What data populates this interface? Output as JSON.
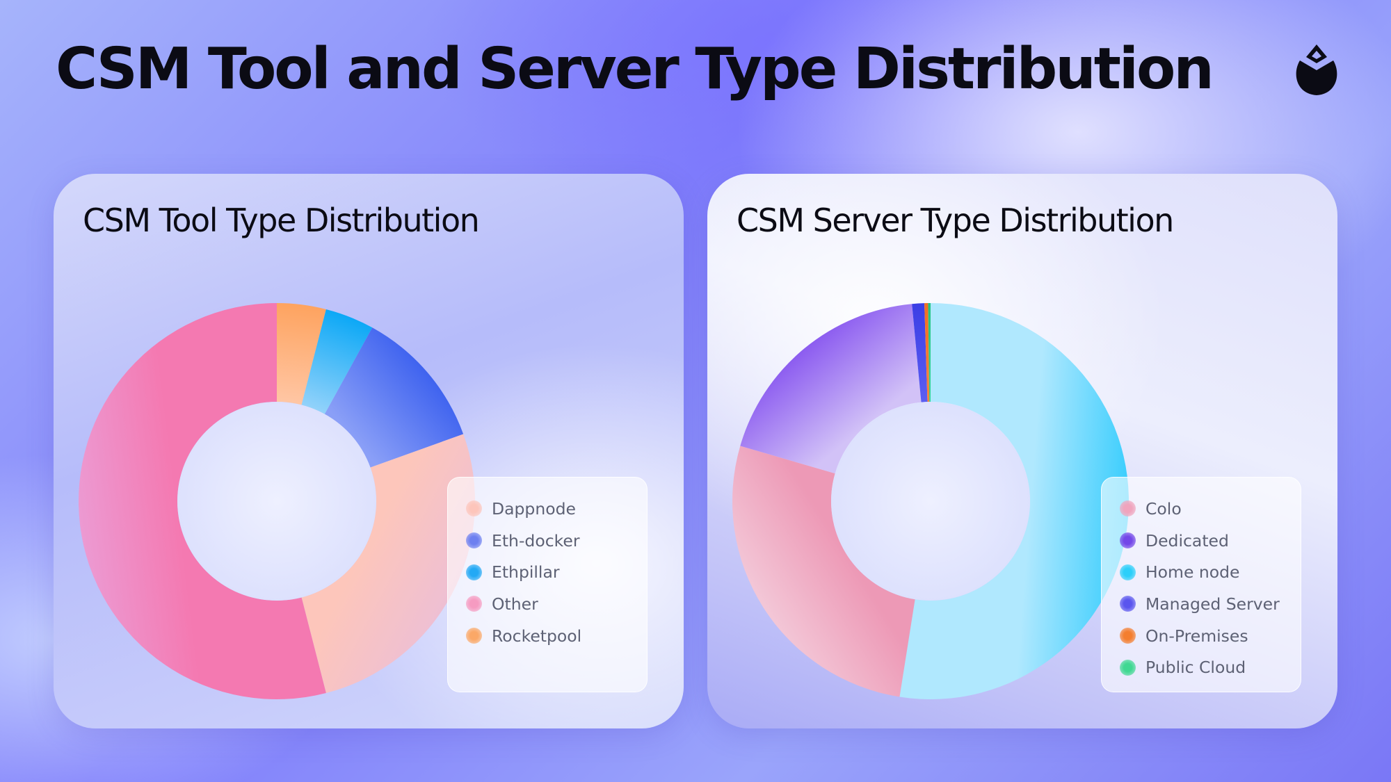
{
  "page": {
    "title": "CSM Tool and Server Type Distribution",
    "logo_icon": "lido-drop-icon"
  },
  "chart_data": [
    {
      "type": "pie",
      "subtype": "donut",
      "title": "CSM Tool Type Distribution",
      "legend_position": "bottom-right",
      "categories": [
        "Dappnode",
        "Eth-docker",
        "Ethpillar",
        "Other",
        "Rocketpool"
      ],
      "series": [
        {
          "values": [
            26.5,
            11.5,
            4.0,
            54.0,
            4.0
          ]
        }
      ],
      "draw_order": [
        "Rocketpool",
        "Ethpillar",
        "Eth-docker",
        "Dappnode",
        "Other"
      ],
      "colors": {
        "Dappnode": [
          "#fdc6bb",
          "#eebfd3"
        ],
        "Eth-docker": [
          "#8a9ff7",
          "#3f63ef"
        ],
        "Ethpillar": [
          "#92d2fa",
          "#0ca8f6"
        ],
        "Other": [
          "#f479b1",
          "#ec9ad2"
        ],
        "Rocketpool": [
          "#ffc6a4",
          "#fea35f"
        ]
      },
      "legend_dot_colors": {
        "Dappnode": "#fdc5bb",
        "Eth-docker": "#6d80f0",
        "Ethpillar": "#23a9f5",
        "Other": "#f69bc1",
        "Rocketpool": "#fba867"
      }
    },
    {
      "type": "pie",
      "subtype": "donut",
      "title": "CSM Server Type Distribution",
      "legend_position": "bottom-right",
      "categories": [
        "Colo",
        "Dedicated",
        "Home node",
        "Managed Server",
        "On-Premises",
        "Public Cloud"
      ],
      "series": [
        {
          "values": [
            27.0,
            19.0,
            52.5,
            1.0,
            0.3,
            0.2
          ]
        }
      ],
      "draw_order": [
        "Home node",
        "Colo",
        "Dedicated",
        "Managed Server",
        "On-Premises",
        "Public Cloud"
      ],
      "colors": {
        "Colo": [
          "#ed99b6",
          "#f3c7d7"
        ],
        "Dedicated": [
          "#d2c2f7",
          "#8c5cf0"
        ],
        "Home node": [
          "#b0e8fe",
          "#38cdfd"
        ],
        "Managed Server": [
          "#5b5ef2",
          "#3b3ee5"
        ],
        "On-Premises": [
          "#f7843c",
          "#f06f22"
        ],
        "Public Cloud": [
          "#35d597",
          "#22c483"
        ]
      },
      "legend_dot_colors": {
        "Colo": "#f0a4bd",
        "Dedicated": "#7347e8",
        "Home node": "#2ccffa",
        "Managed Server": "#5a55ee",
        "On-Premises": "#f47e2f",
        "Public Cloud": "#40d892"
      }
    }
  ]
}
